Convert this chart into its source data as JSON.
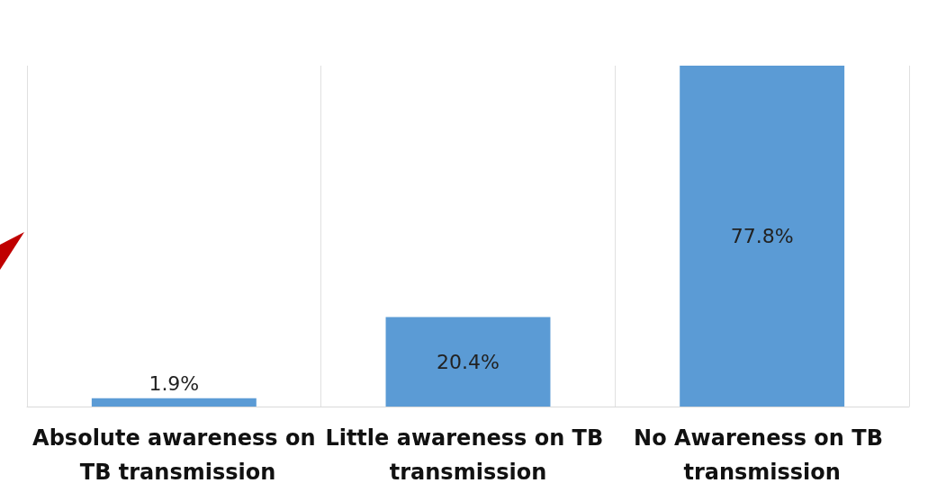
{
  "chart_data": {
    "type": "bar",
    "tick_labels": "x",
    "categories": [
      "Absolute awareness on TB transmission",
      "Little awareness on TB transmission",
      "No Awareness on TB transmission"
    ],
    "values": [
      1.9,
      20.4,
      77.8
    ],
    "value_labels": [
      "1.9%",
      "20.4%",
      "77.8%"
    ],
    "color": "#5b9bd5",
    "grid": "x"
  }
}
